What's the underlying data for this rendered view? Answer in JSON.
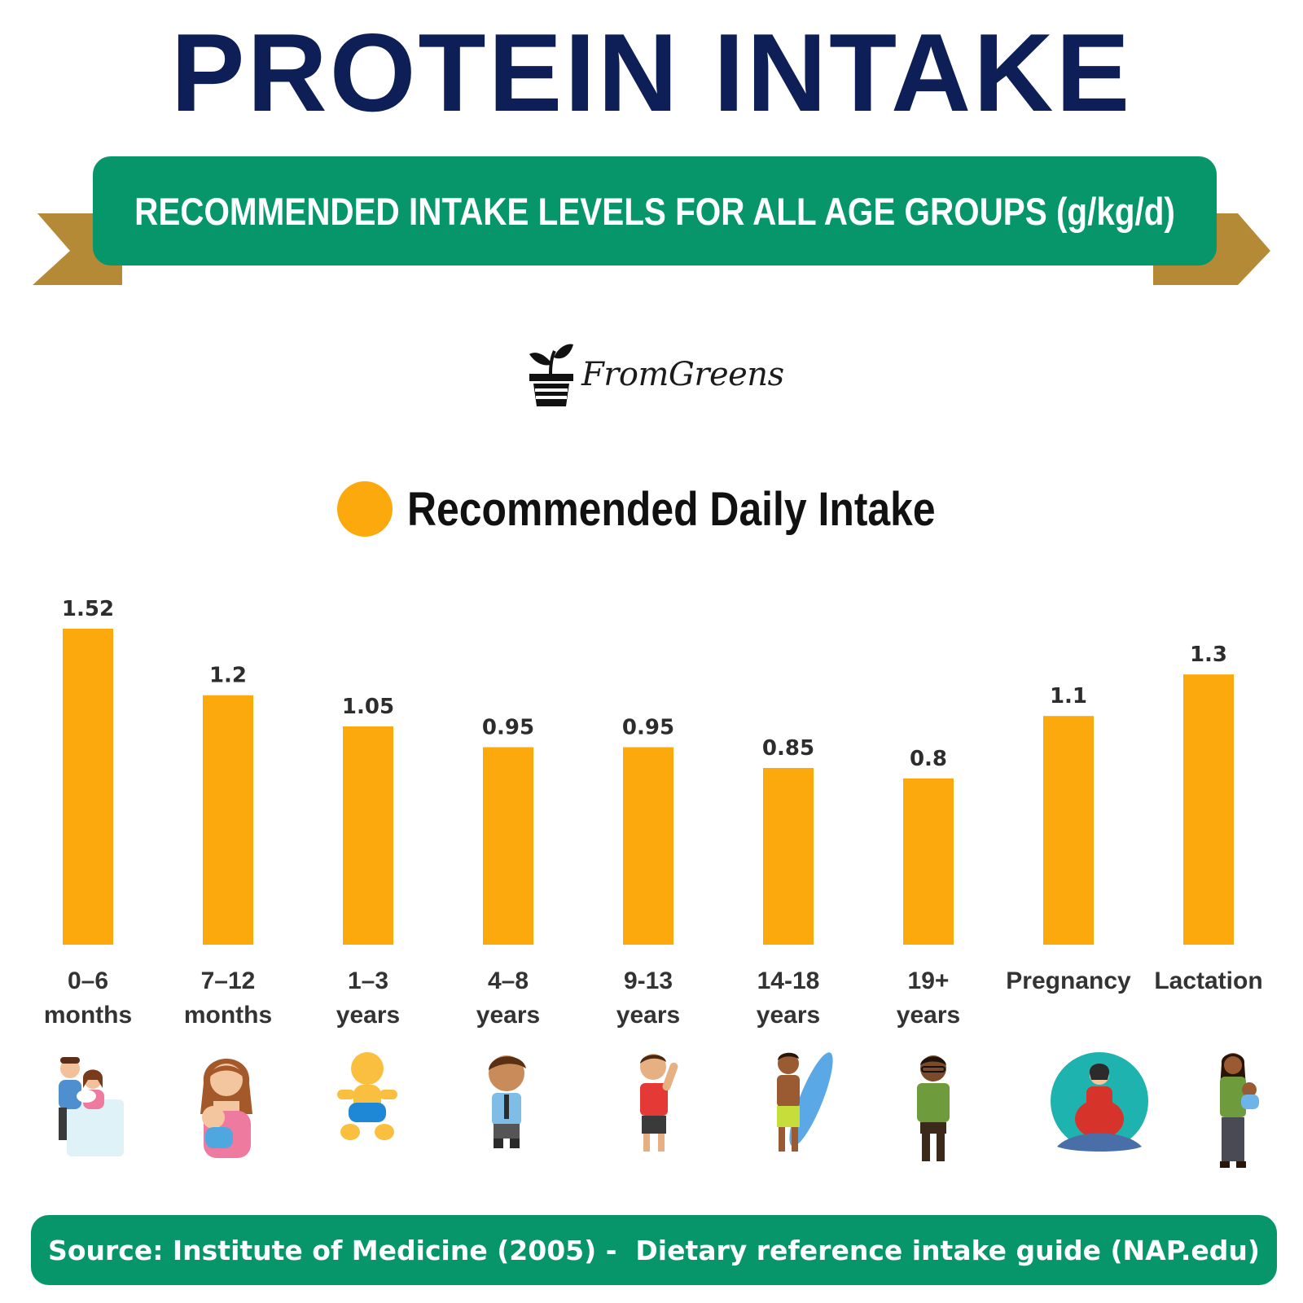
{
  "header": {
    "title": "PROTEIN INTAKE",
    "subtitle": "RECOMMENDED INTAKE LEVELS FOR ALL AGE GROUPS (g/kg/d)"
  },
  "brand": {
    "name": "FromGreens",
    "icon": "plant-pot-icon"
  },
  "legend": {
    "label": "Recommended Daily Intake"
  },
  "colors": {
    "title": "#0d1f56",
    "banner": "#069669",
    "ribbon_tail": "#b58a36",
    "bar": "#fca90d",
    "source_bg": "#069669"
  },
  "chart_data": {
    "type": "bar",
    "title": "",
    "xlabel": "",
    "ylabel": "",
    "ylim": [
      0,
      1.52
    ],
    "grid": false,
    "legend_position": "top",
    "categories": [
      [
        "0–6",
        "months"
      ],
      [
        "7–12",
        "months"
      ],
      [
        "1–3",
        "years"
      ],
      [
        "4–8",
        "years"
      ],
      [
        "9-13",
        "years"
      ],
      [
        "14-18",
        "years"
      ],
      [
        "19+",
        "years"
      ],
      [
        "Pregnancy"
      ],
      [
        "Lactation"
      ]
    ],
    "series": [
      {
        "name": "Recommended Daily Intake",
        "values": [
          1.52,
          1.2,
          1.05,
          0.95,
          0.95,
          0.85,
          0.8,
          1.1,
          1.3
        ],
        "value_labels": [
          "1.52",
          "1.2",
          "1.05",
          "0.95",
          "0.95",
          "0.85",
          "0.8",
          "1.1",
          "1.3"
        ]
      }
    ]
  },
  "icons": [
    "family-with-newborn-icon",
    "mother-holding-baby-icon",
    "crawling-baby-icon",
    "schoolboy-icon",
    "waving-child-icon",
    "teen-surfer-icon",
    "adult-man-icon",
    "pregnant-woman-icon",
    "mother-carrying-baby-icon"
  ],
  "source": {
    "text": "Source: Institute of Medicine (2005) -  Dietary reference intake guide (NAP.edu)"
  }
}
